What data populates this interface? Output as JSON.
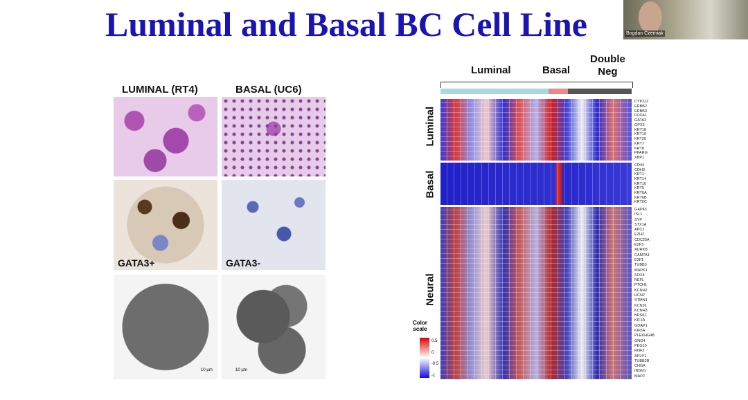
{
  "slide": {
    "title": "Luminal and Basal BC Cell Line",
    "left_panel": {
      "header_left": "LUMINAL (RT4)",
      "header_right": "BASAL (UC6)",
      "label_left": "GATA3+",
      "label_right": "GATA3-",
      "scale_bar": "10 µm"
    },
    "heatmap": {
      "groups": [
        "Luminal",
        "Basal",
        "Double\nNeg"
      ],
      "row_groups": [
        "Luminal",
        "Basal",
        "Neural"
      ],
      "color_scale_title": "Color\nscale",
      "color_scale_ticks": [
        "0.5",
        "0",
        "-0.5",
        "-1"
      ],
      "luminal_genes": [
        "CYP2J2",
        "ERBB2",
        "ERBB3",
        "FOXA1",
        "GATA3",
        "GPX2",
        "KRT18",
        "KRT19",
        "KRT20",
        "KRT7",
        "KRT8",
        "PPARG",
        "XBP1"
      ],
      "basal_genes": [
        "CD44",
        "CDH3",
        "KRT1",
        "KRT14",
        "KRT16",
        "KRT5",
        "KRT6A",
        "KRT6B",
        "KRT6C"
      ],
      "neural_genes": [
        "GAP43",
        "ISL1",
        "SYP",
        "STX1A",
        "APC2",
        "EZH2",
        "CDC25A",
        "E2F3",
        "AURKB",
        "CAMTA1",
        "E2F1",
        "TUBB3",
        "MAPK1",
        "SOX4",
        "NEFL",
        "PTCH1",
        "KCNH2",
        "HCN2",
        "STMN1",
        "KCNJ6",
        "KCNH3",
        "BRSK1",
        "KIF1A",
        "GDAP1",
        "KIF5A",
        "PLEKHG4B",
        "GNG4",
        "PEG10",
        "RNF2",
        "APLP1",
        "TUBB2B",
        "CHGA",
        "INSM1",
        "MAP2"
      ]
    }
  },
  "webcam": {
    "name": "Bogdan Czerniak"
  }
}
